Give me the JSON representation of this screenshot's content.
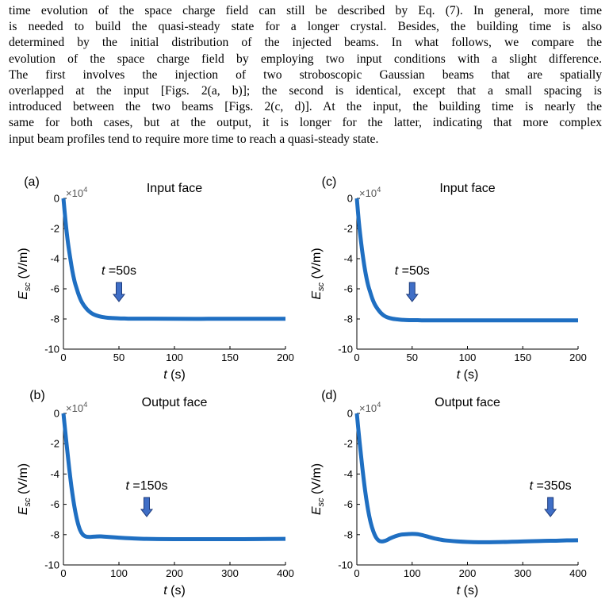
{
  "text_lines": [
    "time evolution of the space charge field can still be described by Eq. (7). In general, more time",
    "is needed to build the quasi-steady state for a longer crystal. Besides, the building time is also",
    "determined by the initial distribution of the injected beams. In what follows, we compare the",
    "evolution of the space charge field by employing two input conditions with a slight difference.",
    "The first involves the injection of two stroboscopic Gaussian beams that are spatially",
    "overlapped at the input [Figs. 2(a, b)]; the second is identical, except that a small spacing is",
    "introduced between the two beams [Figs. 2(c, d)]. At the input, the building time is nearly the",
    "same for both cases, but at the output, it is longer for the latter, indicating that more complex",
    "input beam profiles tend to require more time to reach a quasi-steady state."
  ],
  "axis_labels": {
    "x_var": "t",
    "x_unit": " (s)",
    "y_var": "E",
    "y_sub": "sc",
    "y_unit": " (V/m)",
    "mult_base": "×10",
    "mult_exp": "4"
  },
  "chart_data": [
    {
      "type": "line",
      "panel": "(a)",
      "title": "Input face",
      "xlim": [
        0,
        200
      ],
      "ylim": [
        -10,
        0
      ],
      "xticks": [
        0,
        50,
        100,
        150,
        200
      ],
      "yticks": [
        0,
        -2,
        -4,
        -6,
        -8,
        -10
      ],
      "y_scale": "×10^4",
      "series": [
        {
          "x": [
            0,
            2,
            4,
            6,
            8,
            10,
            12,
            14,
            16,
            18,
            20,
            22,
            25,
            28,
            32,
            36,
            40,
            45,
            50,
            55,
            60,
            70,
            80,
            100,
            130,
            160,
            200
          ],
          "y": [
            0,
            -1.6,
            -2.9,
            -3.9,
            -4.8,
            -5.5,
            -6.0,
            -6.45,
            -6.8,
            -7.05,
            -7.25,
            -7.42,
            -7.6,
            -7.72,
            -7.82,
            -7.88,
            -7.92,
            -7.94,
            -7.96,
            -7.97,
            -7.98,
            -7.98,
            -7.98,
            -7.99,
            -7.99,
            -7.99,
            -7.99
          ]
        }
      ],
      "annotation": {
        "var": "t",
        "label": " =50s",
        "x": 50
      }
    },
    {
      "type": "line",
      "panel": "(c)",
      "title": "Input face",
      "xlim": [
        0,
        200
      ],
      "ylim": [
        -10,
        0
      ],
      "xticks": [
        0,
        50,
        100,
        150,
        200
      ],
      "yticks": [
        0,
        -2,
        -4,
        -6,
        -8,
        -10
      ],
      "y_scale": "×10^4",
      "series": [
        {
          "x": [
            0,
            2,
            4,
            6,
            8,
            10,
            12,
            14,
            16,
            18,
            20,
            22,
            25,
            28,
            32,
            36,
            40,
            45,
            50,
            55,
            60,
            70,
            80,
            100,
            130,
            160,
            200
          ],
          "y": [
            0,
            -1.7,
            -3.0,
            -4.1,
            -5.0,
            -5.7,
            -6.2,
            -6.65,
            -7.0,
            -7.25,
            -7.45,
            -7.62,
            -7.8,
            -7.9,
            -7.98,
            -8.02,
            -8.05,
            -8.07,
            -8.08,
            -8.08,
            -8.09,
            -8.09,
            -8.09,
            -8.09,
            -8.09,
            -8.09,
            -8.09
          ]
        }
      ],
      "annotation": {
        "var": "t",
        "label": " =50s",
        "x": 50
      }
    },
    {
      "type": "line",
      "panel": "(b)",
      "title": "Output face",
      "xlim": [
        0,
        400
      ],
      "ylim": [
        -10,
        0
      ],
      "xticks": [
        0,
        100,
        200,
        300,
        400
      ],
      "yticks": [
        0,
        -2,
        -4,
        -6,
        -8,
        -10
      ],
      "y_scale": "×10^4",
      "series": [
        {
          "x": [
            0,
            5,
            10,
            15,
            20,
            25,
            30,
            35,
            40,
            45,
            50,
            60,
            70,
            80,
            100,
            120,
            140,
            150,
            170,
            200,
            250,
            300,
            350,
            400
          ],
          "y": [
            0,
            -1.8,
            -3.5,
            -5.0,
            -6.2,
            -7.1,
            -7.7,
            -8.0,
            -8.12,
            -8.15,
            -8.15,
            -8.12,
            -8.12,
            -8.15,
            -8.2,
            -8.24,
            -8.27,
            -8.28,
            -8.29,
            -8.3,
            -8.3,
            -8.3,
            -8.29,
            -8.28
          ]
        }
      ],
      "annotation": {
        "var": "t",
        "label": " =150s",
        "x": 150
      }
    },
    {
      "type": "line",
      "panel": "(d)",
      "title": "Output face",
      "xlim": [
        0,
        400
      ],
      "ylim": [
        -10,
        0
      ],
      "xticks": [
        0,
        100,
        200,
        300,
        400
      ],
      "yticks": [
        0,
        -2,
        -4,
        -6,
        -8,
        -10
      ],
      "y_scale": "×10^4",
      "series": [
        {
          "x": [
            0,
            5,
            10,
            15,
            20,
            25,
            30,
            35,
            40,
            45,
            50,
            55,
            60,
            70,
            80,
            90,
            100,
            110,
            120,
            130,
            140,
            150,
            160,
            180,
            200,
            220,
            240,
            260,
            280,
            300,
            320,
            340,
            360,
            380,
            400
          ],
          "y": [
            0,
            -1.9,
            -3.6,
            -5.1,
            -6.3,
            -7.2,
            -7.8,
            -8.2,
            -8.4,
            -8.45,
            -8.42,
            -8.35,
            -8.25,
            -8.1,
            -8.0,
            -7.97,
            -7.95,
            -7.97,
            -8.05,
            -8.15,
            -8.25,
            -8.32,
            -8.38,
            -8.44,
            -8.48,
            -8.5,
            -8.5,
            -8.49,
            -8.47,
            -8.45,
            -8.43,
            -8.41,
            -8.4,
            -8.38,
            -8.37
          ]
        }
      ],
      "annotation": {
        "var": "t",
        "label": " =350s",
        "x": 350
      }
    }
  ],
  "colors": {
    "line": "#1f6fc2",
    "arrow_fill": "#3f6ec6",
    "arrow_stroke": "#1c3a7a"
  }
}
